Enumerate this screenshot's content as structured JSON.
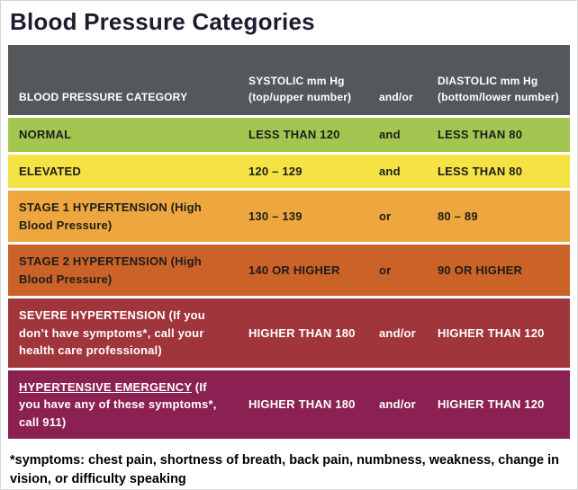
{
  "title": "Blood Pressure Categories",
  "colors": {
    "header_bg": "#54585a",
    "header_text": "#ffffff",
    "row_gap": "#ffffff"
  },
  "table": {
    "headers": {
      "category": "BLOOD PRESSURE CATEGORY",
      "systolic": "SYSTOLIC mm Hg (top/upper number)",
      "connector": "and/or",
      "diastolic": "DIASTOLIC mm Hg (bottom/lower number)"
    },
    "rows": [
      {
        "category_underline": "",
        "category": "NORMAL",
        "systolic": "LESS THAN 120",
        "connector": "and",
        "diastolic": "LESS THAN 80",
        "bg": "#a3c651",
        "text": "#1d1d1b"
      },
      {
        "category_underline": "",
        "category": "ELEVATED",
        "systolic": "120 – 129",
        "connector": "and",
        "diastolic": "LESS THAN 80",
        "bg": "#f5e345",
        "text": "#1d1d1b"
      },
      {
        "category_underline": "",
        "category": "STAGE 1 HYPERTENSION (High Blood Pressure)",
        "systolic": "130 – 139",
        "connector": "or",
        "diastolic": "80 – 89",
        "bg": "#eda73e",
        "text": "#1d1d1b"
      },
      {
        "category_underline": "",
        "category": "STAGE 2 HYPERTENSION (High Blood Pressure)",
        "systolic": "140 OR HIGHER",
        "connector": "or",
        "diastolic": "90 OR HIGHER",
        "bg": "#cb6227",
        "text": "#1d1d1b"
      },
      {
        "category_underline": "",
        "category": "SEVERE HYPERTENSION (If you don’t have symptoms*, call your health care professional)",
        "systolic": "HIGHER THAN 180",
        "connector": "and/or",
        "diastolic": "HIGHER THAN 120",
        "bg": "#a0353c",
        "text": "#ffffff"
      },
      {
        "category_underline": "HYPERTENSIVE EMERGENCY",
        "category": " (If you have any of these symptoms*, call 911)",
        "systolic": "HIGHER THAN 180",
        "connector": "and/or",
        "diastolic": "HIGHER THAN 120",
        "bg": "#8b2152",
        "text": "#ffffff"
      }
    ]
  },
  "footnote": "*symptoms: chest pain, shortness of breath, back pain, numbness, weakness, change in vision, or difficulty speaking"
}
